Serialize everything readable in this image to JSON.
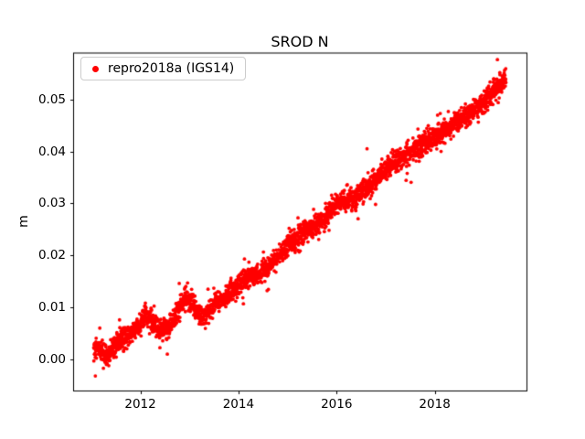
{
  "chart_data": {
    "type": "scatter",
    "title": "SROD N",
    "xlabel": "",
    "ylabel": "m",
    "xlim": [
      2010.63,
      2019.87
    ],
    "ylim": [
      -0.006,
      0.059
    ],
    "xticks": [
      2012,
      2014,
      2016,
      2018
    ],
    "xtick_labels": [
      "2012",
      "2014",
      "2016",
      "2018"
    ],
    "yticks": [
      0.0,
      0.01,
      0.02,
      0.03,
      0.04,
      0.05
    ],
    "ytick_labels": [
      "0.00",
      "0.01",
      "0.02",
      "0.03",
      "0.04",
      "0.05"
    ],
    "grid": false,
    "legend": {
      "position": "upper left",
      "label": "repro2018a (IGS14)",
      "marker": "dot",
      "marker_color": "#ff0000"
    },
    "series": [
      {
        "name": "repro2018a (IGS14)",
        "color": "#ff0000",
        "marker": "dot",
        "marker_radius_px": 1.9,
        "x_start": 2011.05,
        "x_end": 2019.45,
        "points_per_year": 365,
        "seed": 42,
        "noise": {
          "std": 0.001,
          "outlier_fraction": 0.05,
          "outlier_std": 0.0022
        },
        "trend_anchors": {
          "x": [
            2011.05,
            2011.15,
            2011.3,
            2011.45,
            2011.6,
            2011.75,
            2011.9,
            2012.0,
            2012.1,
            2012.25,
            2012.4,
            2012.55,
            2012.7,
            2012.85,
            2012.95,
            2013.1,
            2013.25,
            2013.4,
            2013.55,
            2013.75,
            2014.0,
            2014.25,
            2014.5,
            2014.75,
            2015.0,
            2015.2,
            2015.45,
            2015.7,
            2015.9,
            2016.1,
            2016.35,
            2016.6,
            2016.85,
            2017.1,
            2017.35,
            2017.6,
            2017.85,
            2018.1,
            2018.35,
            2018.6,
            2018.85,
            2019.1,
            2019.3,
            2019.45
          ],
          "y": [
            0.0015,
            0.0025,
            0.0005,
            0.002,
            0.004,
            0.0045,
            0.006,
            0.0065,
            0.009,
            0.007,
            0.0055,
            0.006,
            0.008,
            0.011,
            0.012,
            0.01,
            0.008,
            0.009,
            0.011,
            0.012,
            0.0145,
            0.016,
            0.017,
            0.019,
            0.022,
            0.0235,
            0.025,
            0.0265,
            0.029,
            0.0305,
            0.031,
            0.033,
            0.035,
            0.0375,
            0.039,
            0.0405,
            0.042,
            0.0435,
            0.045,
            0.0465,
            0.048,
            0.0505,
            0.0525,
            0.054
          ]
        },
        "outliers": [
          {
            "x": 2012.55,
            "y": 0.001
          },
          {
            "x": 2016.62,
            "y": 0.0405
          }
        ]
      }
    ],
    "axis_color": "#000000",
    "background_color": "#ffffff"
  }
}
